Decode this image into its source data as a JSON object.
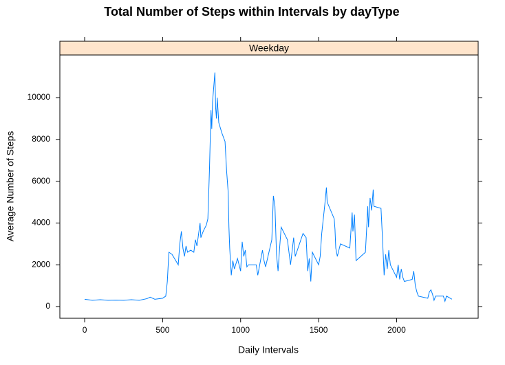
{
  "chart_data": {
    "type": "line",
    "title": "Total Number of Steps within Intervals by dayType",
    "panel": "Weekday",
    "xlabel": "Daily Intervals",
    "ylabel": "Average Number of Steps",
    "color": "#0080ff",
    "strip_color": "#ffe5cc",
    "x": [
      0,
      50,
      100,
      150,
      200,
      250,
      300,
      350,
      400,
      420,
      450,
      500,
      520,
      530,
      540,
      560,
      600,
      610,
      620,
      630,
      640,
      650,
      660,
      680,
      700,
      710,
      720,
      740,
      745,
      760,
      780,
      790,
      800,
      810,
      815,
      820,
      835,
      840,
      845,
      850,
      860,
      880,
      900,
      910,
      920,
      925,
      930,
      940,
      950,
      960,
      980,
      1000,
      1010,
      1020,
      1030,
      1040,
      1050,
      1100,
      1110,
      1120,
      1140,
      1150,
      1160,
      1200,
      1210,
      1220,
      1230,
      1240,
      1250,
      1260,
      1300,
      1320,
      1340,
      1350,
      1400,
      1420,
      1430,
      1440,
      1450,
      1460,
      1500,
      1510,
      1520,
      1540,
      1550,
      1555,
      1600,
      1605,
      1610,
      1620,
      1640,
      1700,
      1715,
      1720,
      1730,
      1740,
      1800,
      1810,
      1815,
      1820,
      1830,
      1840,
      1850,
      1855,
      1900,
      1910,
      1920,
      1930,
      1940,
      1950,
      1960,
      2000,
      2010,
      2020,
      2030,
      2040,
      2050,
      2100,
      2110,
      2120,
      2130,
      2140,
      2200,
      2210,
      2220,
      2230,
      2240,
      2250,
      2300,
      2310,
      2320,
      2355
    ],
    "values": [
      350,
      300,
      330,
      300,
      310,
      300,
      330,
      300,
      380,
      450,
      350,
      400,
      500,
      1200,
      2600,
      2500,
      2000,
      3000,
      3600,
      2800,
      2400,
      2900,
      2600,
      2700,
      2600,
      3200,
      2900,
      4000,
      3300,
      3600,
      3900,
      4200,
      6500,
      9400,
      8500,
      9800,
      11200,
      9500,
      9000,
      10000,
      8800,
      8300,
      7900,
      6500,
      5500,
      3800,
      2800,
      1500,
      2200,
      1800,
      2300,
      1700,
      3100,
      2400,
      2700,
      1900,
      2000,
      2000,
      1500,
      1900,
      2700,
      2200,
      1900,
      3200,
      5300,
      4800,
      2500,
      1700,
      2800,
      3800,
      3200,
      2000,
      3300,
      2400,
      3500,
      3300,
      1700,
      2300,
      1200,
      2600,
      2000,
      2400,
      3500,
      4900,
      5700,
      5000,
      4200,
      3700,
      2800,
      2400,
      3000,
      2800,
      4500,
      3600,
      4400,
      2200,
      2600,
      4000,
      4800,
      3800,
      5200,
      4600,
      5600,
      4800,
      4700,
      3200,
      1500,
      2500,
      1800,
      2700,
      2000,
      1400,
      2000,
      1300,
      1800,
      1400,
      1200,
      1300,
      1700,
      1000,
      700,
      500,
      400,
      700,
      800,
      600,
      300,
      500,
      500,
      250,
      500,
      350
    ],
    "xlim": [
      -159,
      2523
    ],
    "ylim": [
      -559,
      12040
    ],
    "xticks": [
      0,
      500,
      1000,
      1500,
      2000
    ],
    "yticks": [
      0,
      2000,
      4000,
      6000,
      8000,
      10000
    ]
  }
}
